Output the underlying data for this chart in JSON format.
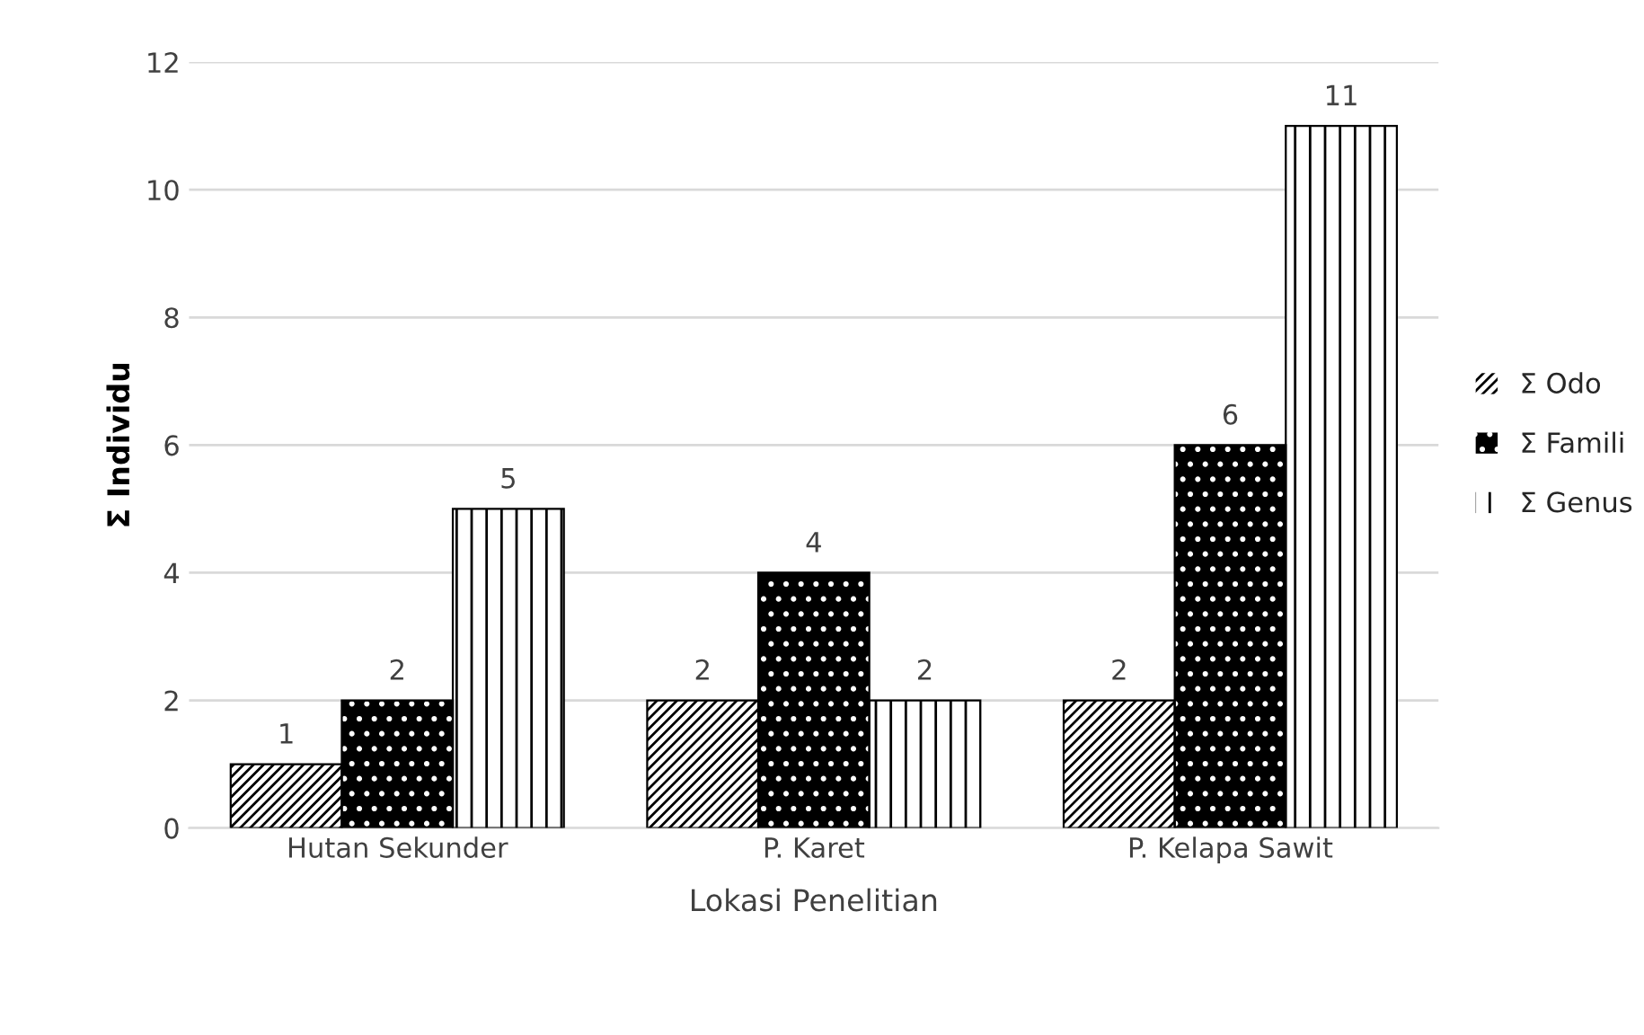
{
  "chart_data": {
    "type": "bar",
    "xlabel": "Lokasi Penelitian",
    "ylabel": "Σ Individu",
    "categories": [
      "Hutan Sekunder",
      "P. Karet",
      "P. Kelapa Sawit"
    ],
    "series": [
      {
        "name": "Σ Odo",
        "color": "#ffffff",
        "values": [
          1,
          2,
          2
        ]
      },
      {
        "name": "Σ Famili",
        "color": "#000000",
        "values": [
          2,
          4,
          6
        ]
      },
      {
        "name": "Σ Genus",
        "color": "#ffffff",
        "values": [
          5,
          2,
          11
        ]
      }
    ],
    "ylim": [
      0,
      12
    ],
    "yticks": [
      0,
      2,
      4,
      6,
      8,
      10,
      12
    ],
    "grid": "y",
    "legend": "right",
    "data_labels": true
  }
}
